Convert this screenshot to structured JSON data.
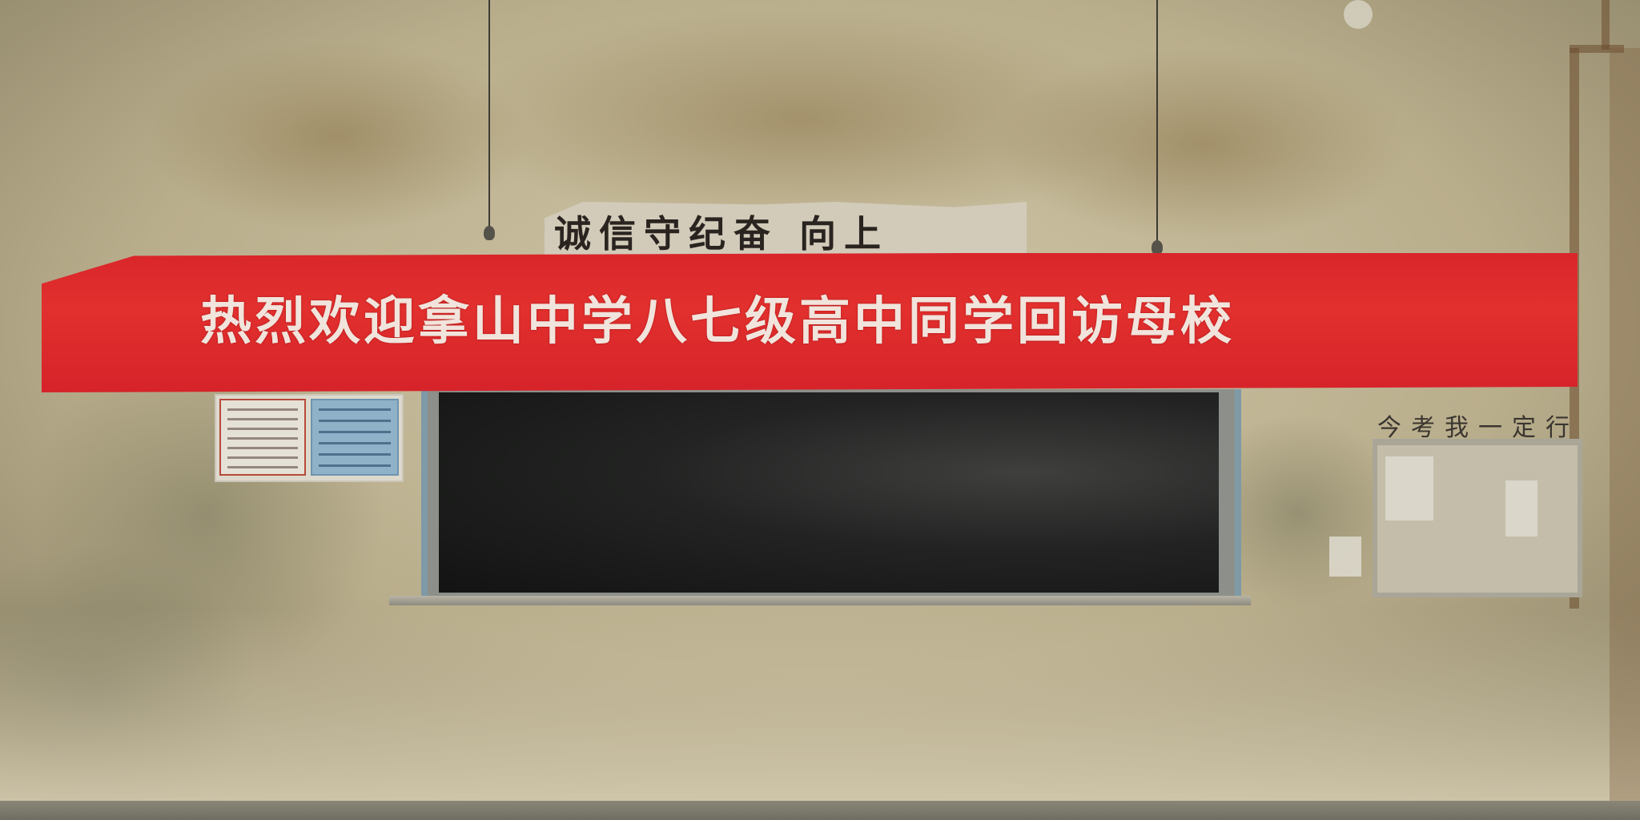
{
  "banner": {
    "text": "热烈欢迎拿山中学八七级高中同学回访母校",
    "color": "#d9262a",
    "text_color": "#f1e4dc"
  },
  "old_sign": {
    "text": "诚信守纪奋 向上"
  },
  "side_board": {
    "title": "今考我一定行"
  },
  "colors": {
    "wall": "#b7ad8f",
    "blackboard": "#1b1c1b"
  }
}
